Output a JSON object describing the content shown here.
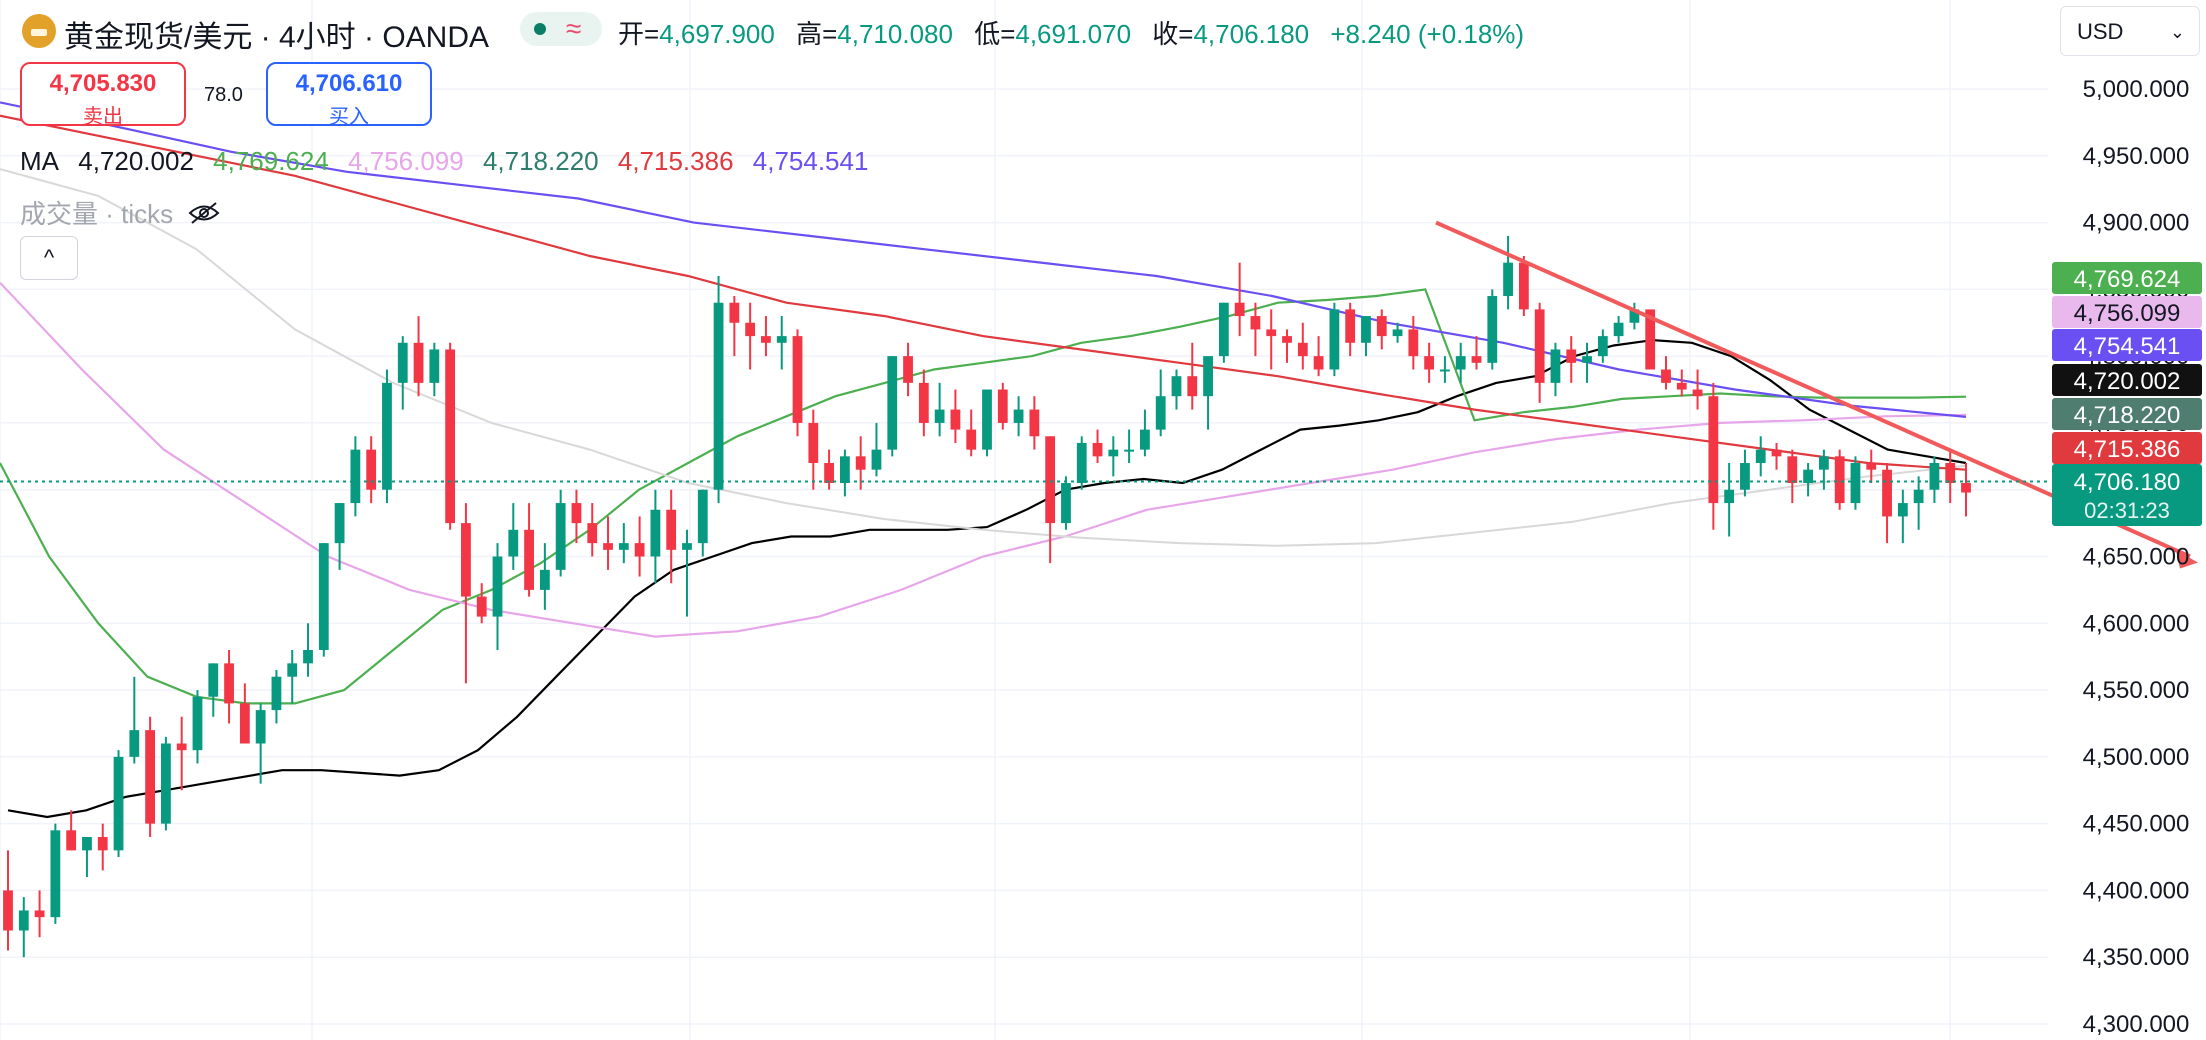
{
  "header": {
    "symbol_title": "黄金现货/美元 · 4小时 · OANDA",
    "status_wave": "≈",
    "ohlc": {
      "open_label": "开=",
      "open": "4,697.900",
      "high_label": "高=",
      "high": "4,710.080",
      "low_label": "低=",
      "low": "4,691.070",
      "close_label": "收=",
      "close": "4,706.180",
      "change": "+8.240 (+0.18%)"
    }
  },
  "trade": {
    "sell_price": "4,705.830",
    "sell_label": "卖出",
    "spread": "78.0",
    "buy_price": "4,706.610",
    "buy_label": "买入"
  },
  "ma_legend": {
    "label": "MA",
    "values": [
      "4,720.002",
      "4,769.624",
      "4,756.099",
      "4,718.220",
      "4,715.386",
      "4,754.541"
    ]
  },
  "volume_legend": "成交量 · ticks",
  "collapse_symbol": "^",
  "currency": {
    "value": "USD",
    "chevron": "⌄"
  },
  "colors": {
    "up": "#089981",
    "down": "#f23645",
    "ma1": "#000000",
    "ma2": "#4caf50",
    "ma3": "#e7a5ea",
    "ma4": "#d8d8d8",
    "ma5": "#e0393e",
    "ma6": "#6a4ff2",
    "trendline": "#f05a5a"
  },
  "chart_data": {
    "type": "line",
    "title": "黄金现货/美元 · 4小时 · OANDA",
    "ylim": [
      4300,
      5000
    ],
    "y_ticks": [
      "5,000.000",
      "4,950.000",
      "4,900.000",
      "4,850.000",
      "4,800.000",
      "4,750.000",
      "4,700.000",
      "4,650.000",
      "4,600.000",
      "4,550.000",
      "4,500.000",
      "4,450.000",
      "4,400.000",
      "4,350.000",
      "4,300.000"
    ],
    "y_tick_values": [
      5000,
      4950,
      4900,
      4850,
      4800,
      4750,
      4700,
      4650,
      4600,
      4550,
      4500,
      4450,
      4400,
      4350,
      4300
    ],
    "candles": [
      [
        4400,
        4430,
        4355,
        4370
      ],
      [
        4370,
        4395,
        4350,
        4385
      ],
      [
        4385,
        4400,
        4365,
        4380
      ],
      [
        4380,
        4450,
        4375,
        4445
      ],
      [
        4445,
        4460,
        4430,
        4430
      ],
      [
        4430,
        4440,
        4410,
        4440
      ],
      [
        4440,
        4450,
        4415,
        4430
      ],
      [
        4430,
        4505,
        4425,
        4500
      ],
      [
        4500,
        4560,
        4495,
        4520
      ],
      [
        4520,
        4530,
        4440,
        4450
      ],
      [
        4450,
        4515,
        4445,
        4510
      ],
      [
        4510,
        4530,
        4475,
        4505
      ],
      [
        4505,
        4550,
        4495,
        4545
      ],
      [
        4545,
        4570,
        4530,
        4570
      ],
      [
        4570,
        4580,
        4525,
        4540
      ],
      [
        4540,
        4555,
        4510,
        4510
      ],
      [
        4510,
        4540,
        4480,
        4535
      ],
      [
        4535,
        4565,
        4525,
        4560
      ],
      [
        4560,
        4580,
        4540,
        4570
      ],
      [
        4570,
        4600,
        4560,
        4580
      ],
      [
        4580,
        4660,
        4575,
        4660
      ],
      [
        4660,
        4690,
        4640,
        4690
      ],
      [
        4690,
        4740,
        4680,
        4730
      ],
      [
        4730,
        4740,
        4690,
        4700
      ],
      [
        4700,
        4790,
        4690,
        4780
      ],
      [
        4780,
        4815,
        4760,
        4810
      ],
      [
        4810,
        4830,
        4770,
        4780
      ],
      [
        4780,
        4810,
        4770,
        4805
      ],
      [
        4805,
        4810,
        4670,
        4675
      ],
      [
        4675,
        4690,
        4555,
        4620
      ],
      [
        4620,
        4630,
        4600,
        4605
      ],
      [
        4605,
        4660,
        4580,
        4650
      ],
      [
        4650,
        4690,
        4640,
        4670
      ],
      [
        4670,
        4690,
        4620,
        4625
      ],
      [
        4625,
        4660,
        4610,
        4640
      ],
      [
        4640,
        4700,
        4635,
        4690
      ],
      [
        4690,
        4700,
        4660,
        4675
      ],
      [
        4675,
        4690,
        4650,
        4660
      ],
      [
        4660,
        4680,
        4640,
        4655
      ],
      [
        4655,
        4675,
        4645,
        4660
      ],
      [
        4660,
        4680,
        4635,
        4650
      ],
      [
        4650,
        4700,
        4630,
        4685
      ],
      [
        4685,
        4700,
        4630,
        4655
      ],
      [
        4655,
        4670,
        4605,
        4660
      ],
      [
        4660,
        4700,
        4650,
        4700
      ],
      [
        4700,
        4860,
        4690,
        4840
      ],
      [
        4840,
        4845,
        4800,
        4825
      ],
      [
        4825,
        4840,
        4790,
        4815
      ],
      [
        4815,
        4830,
        4800,
        4810
      ],
      [
        4810,
        4830,
        4790,
        4815
      ],
      [
        4815,
        4820,
        4740,
        4750
      ],
      [
        4750,
        4760,
        4700,
        4720
      ],
      [
        4720,
        4730,
        4700,
        4705
      ],
      [
        4705,
        4730,
        4695,
        4725
      ],
      [
        4725,
        4740,
        4700,
        4715
      ],
      [
        4715,
        4750,
        4710,
        4730
      ],
      [
        4730,
        4800,
        4725,
        4800
      ],
      [
        4800,
        4810,
        4770,
        4780
      ],
      [
        4780,
        4790,
        4740,
        4750
      ],
      [
        4750,
        4780,
        4740,
        4760
      ],
      [
        4760,
        4775,
        4735,
        4745
      ],
      [
        4745,
        4760,
        4725,
        4730
      ],
      [
        4730,
        4775,
        4725,
        4775
      ],
      [
        4775,
        4780,
        4745,
        4750
      ],
      [
        4750,
        4770,
        4740,
        4760
      ],
      [
        4760,
        4770,
        4730,
        4740
      ],
      [
        4740,
        4740,
        4645,
        4675
      ],
      [
        4675,
        4710,
        4670,
        4705
      ],
      [
        4705,
        4740,
        4700,
        4735
      ],
      [
        4735,
        4745,
        4720,
        4725
      ],
      [
        4725,
        4740,
        4710,
        4730
      ],
      [
        4730,
        4745,
        4720,
        4730
      ],
      [
        4730,
        4760,
        4725,
        4745
      ],
      [
        4745,
        4790,
        4740,
        4770
      ],
      [
        4770,
        4790,
        4760,
        4785
      ],
      [
        4785,
        4810,
        4760,
        4770
      ],
      [
        4770,
        4795,
        4745,
        4800
      ],
      [
        4800,
        4840,
        4795,
        4840
      ],
      [
        4840,
        4870,
        4815,
        4830
      ],
      [
        4830,
        4840,
        4800,
        4820
      ],
      [
        4820,
        4835,
        4790,
        4815
      ],
      [
        4815,
        4820,
        4795,
        4810
      ],
      [
        4810,
        4825,
        4790,
        4800
      ],
      [
        4800,
        4815,
        4785,
        4790
      ],
      [
        4790,
        4840,
        4785,
        4835
      ],
      [
        4835,
        4840,
        4800,
        4810
      ],
      [
        4810,
        4830,
        4800,
        4830
      ],
      [
        4830,
        4835,
        4805,
        4815
      ],
      [
        4815,
        4825,
        4810,
        4820
      ],
      [
        4820,
        4830,
        4790,
        4800
      ],
      [
        4800,
        4810,
        4780,
        4790
      ],
      [
        4790,
        4800,
        4780,
        4790
      ],
      [
        4790,
        4810,
        4780,
        4800
      ],
      [
        4800,
        4815,
        4790,
        4795
      ],
      [
        4795,
        4850,
        4790,
        4845
      ],
      [
        4845,
        4890,
        4835,
        4870
      ],
      [
        4870,
        4875,
        4830,
        4835
      ],
      [
        4835,
        4840,
        4765,
        4780
      ],
      [
        4780,
        4810,
        4770,
        4805
      ],
      [
        4805,
        4815,
        4780,
        4795
      ],
      [
        4795,
        4810,
        4780,
        4800
      ],
      [
        4800,
        4820,
        4795,
        4815
      ],
      [
        4815,
        4830,
        4810,
        4825
      ],
      [
        4825,
        4840,
        4820,
        4835
      ],
      [
        4835,
        4830,
        4790,
        4790
      ],
      [
        4790,
        4800,
        4775,
        4780
      ],
      [
        4780,
        4790,
        4770,
        4775
      ],
      [
        4775,
        4790,
        4760,
        4770
      ],
      [
        4770,
        4780,
        4670,
        4690
      ],
      [
        4690,
        4720,
        4665,
        4700
      ],
      [
        4700,
        4730,
        4695,
        4720
      ],
      [
        4720,
        4740,
        4710,
        4730
      ],
      [
        4730,
        4735,
        4715,
        4725
      ],
      [
        4725,
        4730,
        4690,
        4705
      ],
      [
        4705,
        4720,
        4695,
        4715
      ],
      [
        4715,
        4730,
        4700,
        4725
      ],
      [
        4725,
        4730,
        4685,
        4690
      ],
      [
        4690,
        4725,
        4685,
        4720
      ],
      [
        4720,
        4730,
        4705,
        4715
      ],
      [
        4715,
        4720,
        4660,
        4680
      ],
      [
        4680,
        4700,
        4660,
        4690
      ],
      [
        4690,
        4710,
        4670,
        4700
      ],
      [
        4700,
        4725,
        4690,
        4720
      ],
      [
        4720,
        4730,
        4690,
        4705
      ],
      [
        4705,
        4720,
        4680,
        4697.9
      ]
    ],
    "series": [
      {
        "name": "MA",
        "legend_value": "4,720.002",
        "values": [
          4460,
          4455,
          4460,
          4470,
          4475,
          4480,
          4485,
          4490,
          4490,
          4488,
          4486,
          4490,
          4505,
          4530,
          4560,
          4590,
          4620,
          4640,
          4650,
          4660,
          4665,
          4665,
          4670,
          4670,
          4670,
          4672,
          4685,
          4700,
          4705,
          4708,
          4705,
          4715,
          4730,
          4745,
          4748,
          4752,
          4758,
          4770,
          4780,
          4785,
          4800,
          4808,
          4812,
          4810,
          4800,
          4782,
          4760,
          4745,
          4730,
          4725,
          4720
        ]
      },
      {
        "name": "MA",
        "legend_value": "4,769.624",
        "values": [
          4720,
          4650,
          4600,
          4560,
          4545,
          4540,
          4540,
          4550,
          4580,
          4610,
          4625,
          4645,
          4670,
          4700,
          4720,
          4740,
          4755,
          4770,
          4780,
          4790,
          4795,
          4800,
          4810,
          4815,
          4822,
          4830,
          4840,
          4842,
          4845,
          4850,
          4752,
          4758,
          4762,
          4768,
          4770,
          4772,
          4770,
          4769,
          4769,
          4769,
          4769.6
        ]
      },
      {
        "name": "MA",
        "legend_value": "4,756.099",
        "values": [
          4855,
          4790,
          4730,
          4690,
          4650,
          4625,
          4610,
          4600,
          4590,
          4594,
          4605,
          4625,
          4650,
          4665,
          4685,
          4695,
          4705,
          4715,
          4728,
          4738,
          4745,
          4750,
          4752,
          4755,
          4756
        ]
      },
      {
        "name": "MA",
        "legend_value": "4,718.220",
        "values": [
          4940,
          4920,
          4880,
          4820,
          4780,
          4750,
          4730,
          4705,
          4690,
          4678,
          4670,
          4664,
          4660,
          4658,
          4660,
          4668,
          4676,
          4690,
          4700,
          4710,
          4718
        ]
      },
      {
        "name": "MA",
        "legend_value": "4,715.386",
        "values": [
          4980,
          4965,
          4950,
          4935,
          4915,
          4895,
          4875,
          4860,
          4840,
          4830,
          4815,
          4805,
          4795,
          4785,
          4772,
          4760,
          4750,
          4740,
          4730,
          4720,
          4715
        ]
      },
      {
        "name": "MA",
        "legend_value": "4,754.541",
        "values": [
          4990,
          4972,
          4953,
          4938,
          4928,
          4918,
          4900,
          4890,
          4880,
          4870,
          4860,
          4845,
          4825,
          4810,
          4790,
          4775,
          4763,
          4754.5
        ]
      }
    ],
    "trendline": [
      [
        4900,
        4650
      ]
    ],
    "current_price": "4,706.180",
    "countdown": "02:31:23",
    "price_labels": [
      "4,769.624",
      "4,756.099",
      "4,754.541",
      "4,720.002",
      "4,718.220",
      "4,715.386",
      "4,706.180"
    ]
  }
}
